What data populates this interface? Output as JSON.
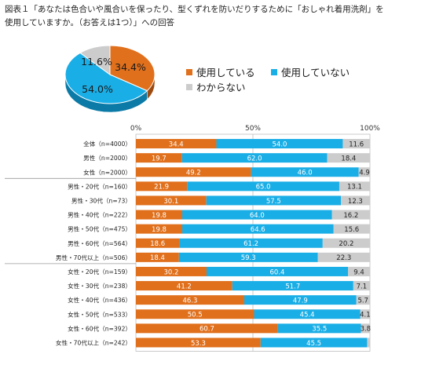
{
  "title": {
    "line1": "図表１「あなたは色合いや風合いを保ったり、型くずれを防いだりするために「おしゃれ着用洗剤」を",
    "line2": "使用していますか。（お答えは1つ）」への回答"
  },
  "colors": {
    "using": "#E0701C",
    "not_using": "#1AAEE6",
    "unknown": "#CCCCCC"
  },
  "pie": {
    "labels": [
      "34.4%",
      "54.0%",
      "11.6%"
    ]
  },
  "chart_data": {
    "type": "bar",
    "stacked": true,
    "orientation": "horizontal",
    "legend_position": "right-of-pie",
    "xlim": [
      0,
      100
    ],
    "x_ticks": [
      "0%",
      "50%",
      "100%"
    ],
    "categories": [
      "全体（n=4000）",
      "男性（n=2000）",
      "女性（n=2000）",
      "男性・20代（n=160）",
      "男性・30代（n=73）",
      "男性・40代（n=222）",
      "男性・50代（n=475）",
      "男性・60代（n=564）",
      "男性・70代以上（n=506）",
      "女性・20代（n=159）",
      "女性・30代（n=238）",
      "女性・40代（n=436）",
      "女性・50代（n=533）",
      "女性・60代（n=392）",
      "女性・70代以上（n=242）"
    ],
    "series": [
      {
        "name": "使用している",
        "values": [
          34.4,
          19.7,
          49.2,
          21.9,
          30.1,
          19.8,
          19.8,
          18.6,
          18.4,
          30.2,
          41.2,
          46.3,
          50.5,
          60.7,
          53.3
        ]
      },
      {
        "name": "使用していない",
        "values": [
          54.0,
          62.0,
          46.0,
          65.0,
          57.5,
          64.0,
          64.6,
          61.2,
          59.3,
          60.4,
          51.7,
          47.9,
          45.4,
          35.5,
          45.5
        ]
      },
      {
        "name": "わからない",
        "values": [
          11.6,
          18.4,
          4.9,
          13.1,
          12.3,
          16.2,
          15.6,
          20.2,
          22.3,
          9.4,
          7.1,
          5.7,
          4.1,
          3.8,
          1.2
        ]
      }
    ],
    "value_labels": [
      [
        "34.4",
        "54.0",
        "11.6"
      ],
      [
        "19.7",
        "62.0",
        "18.4"
      ],
      [
        "49.2",
        "46.0",
        "4.9"
      ],
      [
        "21.9",
        "65.0",
        "13.1"
      ],
      [
        "30.1",
        "57.5",
        "12.3"
      ],
      [
        "19.8",
        "64.0",
        "16.2"
      ],
      [
        "19.8",
        "64.6",
        "15.6"
      ],
      [
        "18.6",
        "61.2",
        "20.2"
      ],
      [
        "18.4",
        "59.3",
        "22.3"
      ],
      [
        "30.2",
        "60.4",
        "9.4"
      ],
      [
        "41.2",
        "51.7",
        "7.1"
      ],
      [
        "46.3",
        "47.9",
        "5.7"
      ],
      [
        "50.5",
        "45.4",
        "4.1"
      ],
      [
        "60.7",
        "35.5",
        "3.8"
      ],
      [
        "53.3",
        "45.5",
        ""
      ]
    ]
  }
}
